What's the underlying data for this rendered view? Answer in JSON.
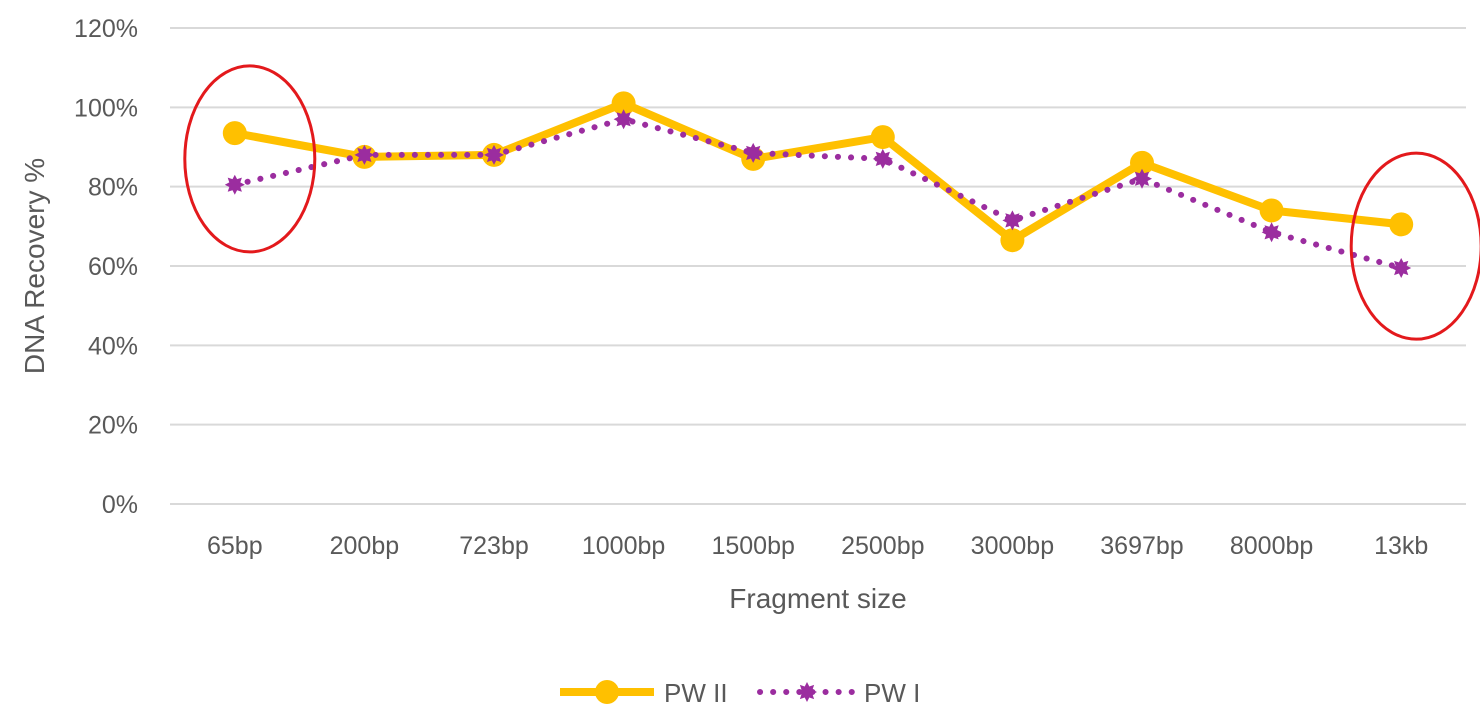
{
  "chart_data": {
    "type": "line",
    "title": "",
    "xlabel": "Fragment size",
    "ylabel": "DNA Recovery %",
    "ylim": [
      0,
      120
    ],
    "yticks": [
      "0%",
      "20%",
      "40%",
      "60%",
      "80%",
      "100%",
      "120%"
    ],
    "categories": [
      "65bp",
      "200bp",
      "723bp",
      "1000bp",
      "1500bp",
      "2500bp",
      "3000bp",
      "3697bp",
      "8000bp",
      "13kb"
    ],
    "grid": true,
    "legend_position": "bottom",
    "series": [
      {
        "name": "PW II",
        "values": [
          93.5,
          87.5,
          88,
          101,
          87,
          92.5,
          66.5,
          86,
          74,
          70.5
        ],
        "color": "#FFC000",
        "style": "solid",
        "marker": "circle"
      },
      {
        "name": "PW I",
        "values": [
          80.5,
          88,
          88,
          97,
          88.5,
          87,
          71.5,
          82,
          68.5,
          59.5
        ],
        "color": "#9B2D9F",
        "style": "dotted",
        "marker": "star"
      }
    ],
    "annotations": [
      {
        "shape": "ellipse",
        "color": "#E3191C",
        "around_category": "65bp"
      },
      {
        "shape": "ellipse",
        "color": "#E3191C",
        "around_category": "13kb"
      }
    ]
  }
}
